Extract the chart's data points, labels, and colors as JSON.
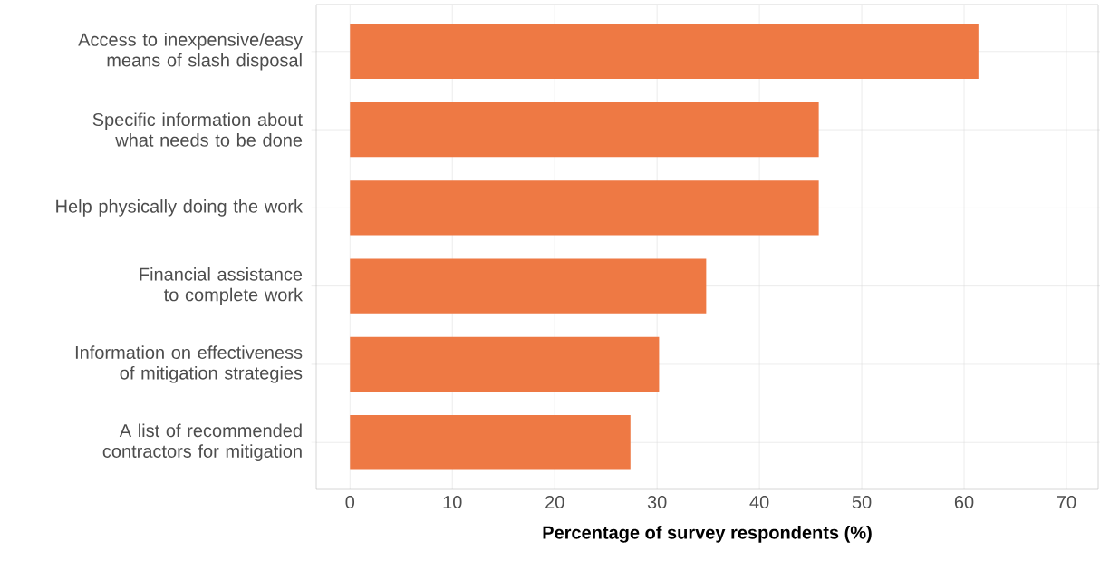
{
  "chart_data": {
    "type": "bar",
    "orientation": "horizontal",
    "categories": [
      "Access to inexpensive/easy means of slash disposal",
      "Specific information about what needs to be done",
      "Help physically doing the work",
      "Financial assistance to complete work",
      "Information on effectiveness of mitigation strategies",
      "A list of recommended contractors for mitigation"
    ],
    "values": [
      61.4,
      45.8,
      45.8,
      34.8,
      30.2,
      27.4
    ],
    "color": "#ee7944",
    "xlabel": "Percentage of survey respondents (%)",
    "xlim": [
      -3.3,
      73.1
    ],
    "xticks": [
      0,
      10,
      20,
      30,
      40,
      50,
      60,
      70
    ],
    "grid": true
  }
}
